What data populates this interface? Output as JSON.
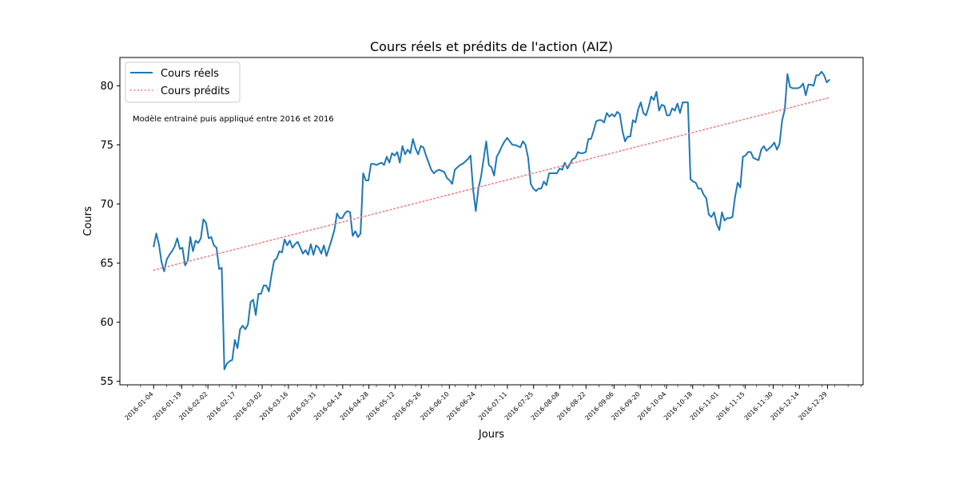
{
  "chart_data": {
    "type": "line",
    "title": "Cours réels et prédits de l'action (AIZ)",
    "xlabel": "Jours",
    "ylabel": "Cours",
    "annotation": "Modèle entrainé puis appliqué entre 2016 et 2016",
    "ylim": [
      54.7,
      82.4
    ],
    "yticks": [
      55,
      60,
      65,
      70,
      75,
      80
    ],
    "x_date_range": [
      "2016-01-04",
      "2016-12-30"
    ],
    "xticks": [
      "2016-01-04",
      "2016-01-19",
      "2016-02-02",
      "2016-02-17",
      "2016-03-02",
      "2016-03-16",
      "2016-03-31",
      "2016-04-14",
      "2016-04-28",
      "2016-05-12",
      "2016-05-26",
      "2016-06-10",
      "2016-06-24",
      "2016-07-11",
      "2016-07-25",
      "2016-08-08",
      "2016-08-22",
      "2016-09-06",
      "2016-09-20",
      "2016-10-04",
      "2016-10-18",
      "2016-11-01",
      "2016-11-15",
      "2016-11-30",
      "2016-12-14",
      "2016-12-29"
    ],
    "legend_position": "top-left",
    "series": [
      {
        "name": "Cours réels",
        "color": "#1f77b4",
        "style": "solid",
        "values": [
          66.4,
          67.5,
          66.6,
          65.1,
          64.3,
          65.3,
          65.7,
          66.0,
          66.4,
          67.1,
          66.2,
          66.3,
          64.8,
          65.2,
          67.2,
          66.0,
          66.9,
          66.7,
          67.1,
          68.7,
          68.4,
          67.1,
          67.2,
          66.5,
          66.3,
          64.5,
          64.6,
          56.0,
          56.5,
          56.7,
          56.8,
          58.5,
          57.8,
          59.4,
          59.7,
          59.4,
          59.8,
          61.7,
          61.9,
          60.6,
          62.4,
          62.4,
          63.1,
          63.1,
          62.6,
          64.0,
          65.2,
          65.4,
          66.0,
          65.9,
          67.0,
          66.5,
          66.9,
          66.3,
          66.6,
          66.8,
          66.3,
          65.8,
          66.1,
          65.7,
          66.6,
          65.7,
          66.5,
          66.3,
          65.8,
          66.5,
          65.6,
          66.3,
          67.0,
          67.8,
          69.2,
          68.8,
          68.8,
          69.2,
          69.4,
          69.3,
          67.3,
          67.7,
          67.2,
          67.5,
          72.6,
          72.0,
          72.0,
          73.4,
          73.4,
          73.3,
          73.4,
          73.5,
          73.3,
          74.0,
          73.5,
          74.3,
          74.1,
          74.4,
          73.5,
          74.9,
          74.2,
          74.6,
          74.3,
          75.5,
          74.7,
          74.2,
          74.9,
          74.8,
          74.1,
          73.5,
          72.9,
          72.6,
          72.8,
          72.9,
          72.8,
          72.7,
          72.2,
          72.0,
          71.7,
          72.9,
          73.1,
          73.3,
          73.4,
          73.6,
          73.8,
          74.1,
          71.2,
          69.4,
          71.3,
          72.3,
          73.8,
          75.3,
          73.3,
          73.1,
          72.4,
          74.0,
          74.4,
          74.9,
          75.3,
          75.6,
          75.3,
          75.0,
          75.0,
          74.9,
          74.8,
          75.3,
          75.0,
          73.9,
          71.7,
          71.3,
          71.1,
          71.3,
          71.3,
          71.9,
          71.6,
          72.6,
          72.6,
          72.6,
          72.6,
          73.0,
          72.9,
          73.5,
          73.0,
          73.4,
          73.8,
          73.9,
          74.4,
          74.3,
          74.3,
          74.4,
          75.5,
          75.5,
          76.2,
          77.0,
          77.1,
          77.1,
          76.9,
          77.7,
          77.4,
          77.6,
          77.4,
          77.8,
          77.6,
          76.2,
          75.3,
          75.7,
          75.7,
          77.1,
          76.9,
          78.0,
          78.6,
          77.7,
          77.5,
          78.2,
          79.1,
          78.8,
          79.5,
          77.9,
          78.4,
          78.3,
          77.5,
          77.5,
          78.1,
          77.9,
          78.5,
          77.7,
          78.6,
          78.6,
          78.6,
          72.1,
          71.9,
          71.8,
          71.3,
          71.3,
          70.8,
          70.5,
          69.1,
          68.9,
          69.3,
          68.3,
          67.8,
          69.3,
          68.6,
          68.8,
          68.8,
          68.9,
          70.6,
          71.8,
          71.4,
          74.0,
          74.1,
          74.4,
          74.4,
          73.9,
          73.8,
          73.7,
          74.6,
          74.9,
          74.5,
          74.7,
          74.9,
          75.2,
          74.6,
          75.1,
          77.1,
          78.0,
          81.0,
          79.9,
          79.8,
          79.8,
          79.8,
          79.9,
          80.2,
          79.2,
          80.1,
          80.1,
          80.0,
          80.9,
          80.9,
          81.2,
          80.9,
          80.3,
          80.5
        ]
      },
      {
        "name": "Cours prédits",
        "color": "#f08080",
        "style": "dotted",
        "values": [
          64.4,
          79.0
        ]
      }
    ]
  }
}
